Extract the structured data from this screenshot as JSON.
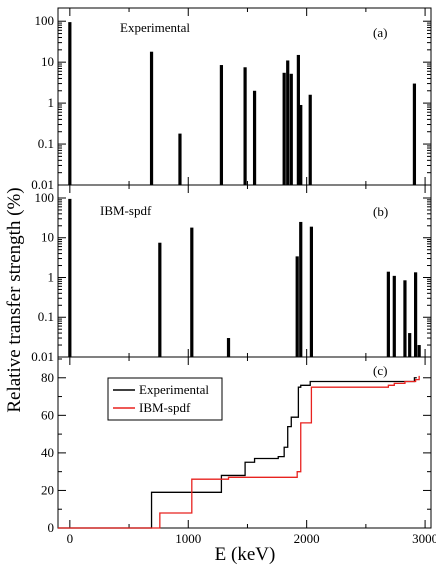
{
  "figure": {
    "ylabel": "Relative transfer strength (%)",
    "xlabel": "E (keV)"
  },
  "chart_data": [
    {
      "type": "bar",
      "panel": "(a)",
      "title": "Experimental",
      "y_scale": "log",
      "xlim": [
        -100,
        3050
      ],
      "ylim": [
        0.01,
        150
      ],
      "xticks": [
        0,
        1000,
        2000,
        3000
      ],
      "yticks": [
        0.01,
        0.1,
        1,
        10,
        100
      ],
      "ytick_labels": [
        "0.01",
        "0.1",
        "1",
        "10",
        "100"
      ],
      "bars": [
        {
          "x": 0,
          "y": 95
        },
        {
          "x": 690,
          "y": 18
        },
        {
          "x": 930,
          "y": 0.18
        },
        {
          "x": 1280,
          "y": 8.5
        },
        {
          "x": 1480,
          "y": 7.5
        },
        {
          "x": 1560,
          "y": 2
        },
        {
          "x": 1810,
          "y": 5.5
        },
        {
          "x": 1840,
          "y": 11
        },
        {
          "x": 1870,
          "y": 5.2
        },
        {
          "x": 1930,
          "y": 15
        },
        {
          "x": 1950,
          "y": 0.9
        },
        {
          "x": 2030,
          "y": 1.6
        },
        {
          "x": 2910,
          "y": 3
        }
      ]
    },
    {
      "type": "bar",
      "panel": "(b)",
      "title": "IBM-spdf",
      "y_scale": "log",
      "xlim": [
        -100,
        3050
      ],
      "ylim": [
        0.01,
        150
      ],
      "xticks": [
        0,
        1000,
        2000,
        3000
      ],
      "yticks": [
        0.01,
        0.1,
        1,
        10,
        100
      ],
      "ytick_labels": [
        "0.01",
        "0.1",
        "1",
        "10",
        "100"
      ],
      "bars": [
        {
          "x": 0,
          "y": 95
        },
        {
          "x": 760,
          "y": 7.5
        },
        {
          "x": 1030,
          "y": 18
        },
        {
          "x": 1340,
          "y": 0.03
        },
        {
          "x": 1920,
          "y": 3.4
        },
        {
          "x": 1950,
          "y": 25
        },
        {
          "x": 2040,
          "y": 19
        },
        {
          "x": 2690,
          "y": 1.4
        },
        {
          "x": 2740,
          "y": 1.1
        },
        {
          "x": 2830,
          "y": 0.85
        },
        {
          "x": 2870,
          "y": 0.04
        },
        {
          "x": 2920,
          "y": 1.35
        },
        {
          "x": 2950,
          "y": 0.02
        }
      ]
    },
    {
      "type": "line",
      "panel": "(c)",
      "step": true,
      "xlim": [
        -100,
        3050
      ],
      "ylim": [
        0,
        90
      ],
      "xticks": [
        0,
        1000,
        2000,
        3000
      ],
      "xtick_labels": [
        "0",
        "1000",
        "2000",
        "3000"
      ],
      "yticks": [
        0,
        20,
        40,
        60,
        80
      ],
      "ytick_labels": [
        "0",
        "20",
        "40",
        "60",
        "80"
      ],
      "legend_position": "top-left",
      "series": [
        {
          "name": "Experimental",
          "color": "#000000",
          "x": [
            -100,
            690,
            1280,
            1480,
            1560,
            1760,
            1810,
            1840,
            1870,
            1930,
            1950,
            2030,
            2910,
            2930
          ],
          "y": [
            0,
            19,
            28,
            35,
            37,
            38,
            43,
            54,
            59,
            75,
            76,
            78,
            80,
            80
          ]
        },
        {
          "name": "IBM-spdf",
          "color": "#e8221f",
          "x": [
            -100,
            760,
            1030,
            1340,
            1920,
            1950,
            2040,
            2690,
            2740,
            2830,
            2920,
            2950
          ],
          "y": [
            0,
            8,
            26,
            27,
            30,
            56,
            75,
            76,
            77,
            78,
            79,
            81
          ]
        }
      ]
    }
  ]
}
